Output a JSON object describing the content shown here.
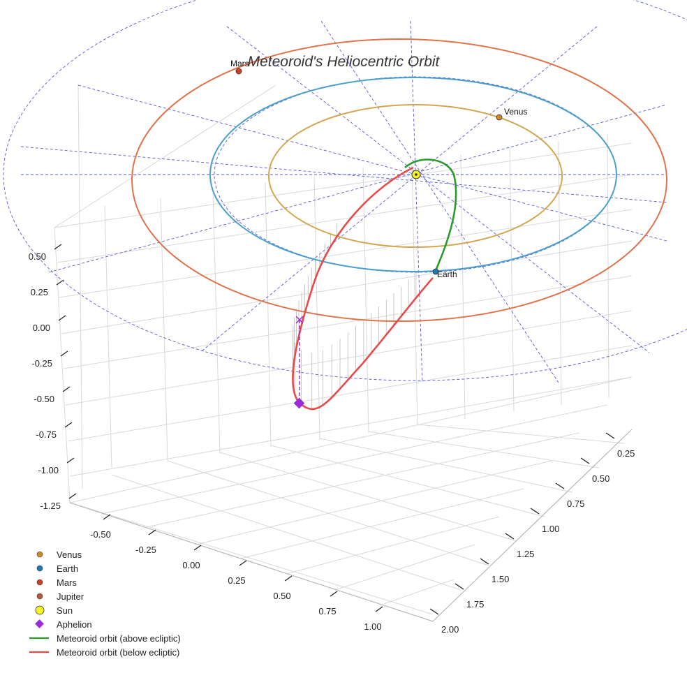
{
  "chart_data": {
    "type": "scatter",
    "title": "Meteoroid's Heliocentric Orbit",
    "axes": {
      "x": {
        "ticks": [
          "-0.50",
          "-0.25",
          "0.00",
          "0.25",
          "0.50",
          "0.75",
          "1.00"
        ]
      },
      "y": {
        "ticks": [
          "0.25",
          "0.50",
          "0.75",
          "1.00",
          "1.25",
          "1.50",
          "1.75",
          "2.00"
        ]
      },
      "z": {
        "ticks": [
          "0.50",
          "0.25",
          "0.00",
          "-0.25",
          "-0.50",
          "-0.75",
          "-1.00",
          "-1.25"
        ]
      }
    },
    "bodies": [
      {
        "name": "Venus",
        "label": "Venus",
        "color": "#d18a2a",
        "orbit_color": "#d4a650"
      },
      {
        "name": "Earth",
        "label": "Earth",
        "color": "#1f77b4",
        "orbit_color": "#4aa0c8"
      },
      {
        "name": "Mars",
        "label": "Mars",
        "color": "#c8441e",
        "orbit_color": "#e0724a"
      },
      {
        "name": "Jupiter",
        "color": "#b05a3a"
      }
    ],
    "sun": {
      "name": "Sun",
      "color": "#f5f51f"
    },
    "aphelion": {
      "name": "Aphelion",
      "color": "#9b2bd6"
    },
    "meteoroid": {
      "above": {
        "name": "Meteoroid orbit (above ecliptic)",
        "color": "#2a9a2a"
      },
      "below": {
        "name": "Meteoroid orbit (below ecliptic)",
        "color": "#e84a4a"
      }
    },
    "grid": true,
    "legend_position": "bottom-left"
  }
}
